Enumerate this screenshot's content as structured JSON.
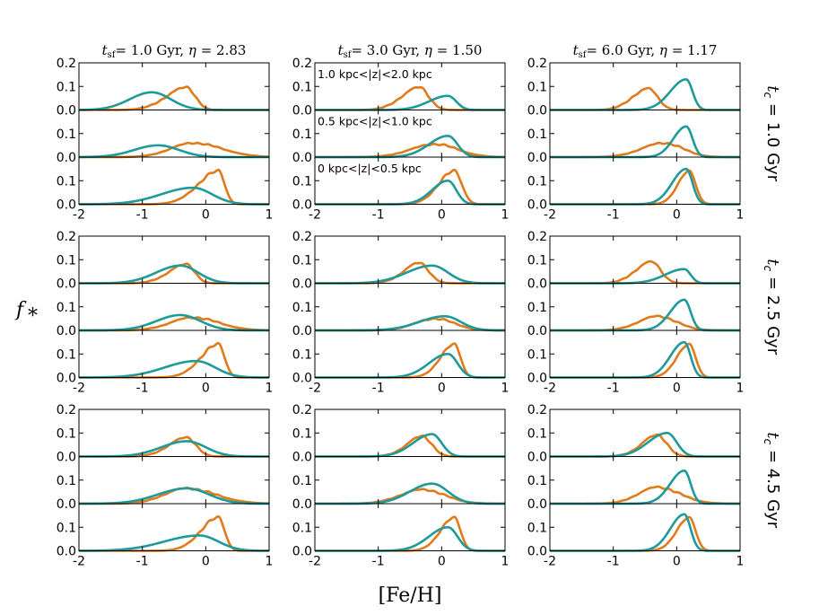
{
  "chart_data": {
    "type": "line",
    "xlabel": "[Fe/H]",
    "ylabel": "f_*",
    "xlim": [
      -2,
      1
    ],
    "ylim": [
      0,
      0.2
    ],
    "xticks": [
      -2,
      -1,
      0,
      1
    ],
    "yticks": [
      0.0,
      0.1,
      0.2
    ],
    "xtick_labels": [
      "-2",
      "-1",
      "0",
      "1"
    ],
    "ytick_labels": [
      "0.0",
      "0.1",
      "0.2"
    ],
    "series_colors": {
      "orange": "#e07b1a",
      "teal": "#1f9a9a"
    },
    "columns": [
      {
        "title": "t_sf = 1.0 Gyr, η = 2.83",
        "tsf_value": "1.0",
        "eta_value": "2.83"
      },
      {
        "title": "t_sf = 3.0 Gyr, η = 1.50",
        "tsf_value": "3.0",
        "eta_value": "1.50"
      },
      {
        "title": "t_sf = 6.0 Gyr, η = 1.17",
        "tsf_value": "6.0",
        "eta_value": "1.17"
      }
    ],
    "row_groups": [
      {
        "label": "t_c = 1.0 Gyr",
        "value": "= 1.0 Gyr"
      },
      {
        "label": "t_c = 2.5 Gyr",
        "value": "= 2.5 Gyr"
      },
      {
        "label": "t_c = 4.5 Gyr",
        "value": "= 4.5 Gyr"
      }
    ],
    "subrows": [
      {
        "label": "1.0 kpc<|z|<2.0 kpc"
      },
      {
        "label": "0.5 kpc<|z|<1.0 kpc"
      },
      {
        "label": "0 kpc<|z|<0.5 kpc"
      }
    ],
    "panels": [
      [
        [
          {
            "orange": {
              "mu": -0.3,
              "sl": 0.32,
              "sr": 0.14,
              "amp": 0.095,
              "jitter": 0.35
            },
            "teal": {
              "mu": -0.85,
              "sl": 0.35,
              "sr": 0.3,
              "amp": 0.075
            }
          },
          {
            "orange": {
              "mu": -0.2,
              "sl": 0.35,
              "sr": 0.45,
              "amp": 0.06,
              "jitter": 0.25
            },
            "teal": {
              "mu": -0.75,
              "sl": 0.38,
              "sr": 0.33,
              "amp": 0.05
            }
          },
          {
            "orange": {
              "mu": 0.2,
              "sl": 0.32,
              "sr": 0.1,
              "amp": 0.14,
              "jitter": 0.2
            },
            "teal": {
              "mu": -0.2,
              "sl": 0.5,
              "sr": 0.3,
              "amp": 0.07
            }
          }
        ],
        [
          {
            "orange": {
              "mu": -0.35,
              "sl": 0.28,
              "sr": 0.15,
              "amp": 0.095,
              "jitter": 0.35
            },
            "teal": {
              "mu": 0.1,
              "sl": 0.3,
              "sr": 0.13,
              "amp": 0.06
            }
          },
          {
            "orange": {
              "mu": -0.1,
              "sl": 0.38,
              "sr": 0.35,
              "amp": 0.055,
              "jitter": 0.3
            },
            "teal": {
              "mu": 0.1,
              "sl": 0.3,
              "sr": 0.15,
              "amp": 0.09
            }
          },
          {
            "orange": {
              "mu": 0.2,
              "sl": 0.25,
              "sr": 0.12,
              "amp": 0.14,
              "jitter": 0.2
            },
            "teal": {
              "mu": 0.1,
              "sl": 0.25,
              "sr": 0.13,
              "amp": 0.1
            }
          }
        ],
        [
          {
            "orange": {
              "mu": -0.45,
              "sl": 0.25,
              "sr": 0.15,
              "amp": 0.09,
              "jitter": 0.35
            },
            "teal": {
              "mu": 0.15,
              "sl": 0.25,
              "sr": 0.1,
              "amp": 0.13
            }
          },
          {
            "orange": {
              "mu": -0.2,
              "sl": 0.35,
              "sr": 0.3,
              "amp": 0.06,
              "jitter": 0.3
            },
            "teal": {
              "mu": 0.15,
              "sl": 0.2,
              "sr": 0.1,
              "amp": 0.13
            }
          },
          {
            "orange": {
              "mu": 0.2,
              "sl": 0.18,
              "sr": 0.1,
              "amp": 0.14,
              "jitter": 0.1
            },
            "teal": {
              "mu": 0.15,
              "sl": 0.22,
              "sr": 0.1,
              "amp": 0.15
            }
          }
        ]
      ],
      [
        [
          {
            "orange": {
              "mu": -0.3,
              "sl": 0.28,
              "sr": 0.13,
              "amp": 0.08,
              "jitter": 0.35
            },
            "teal": {
              "mu": -0.4,
              "sl": 0.38,
              "sr": 0.28,
              "amp": 0.075
            }
          },
          {
            "orange": {
              "mu": -0.2,
              "sl": 0.35,
              "sr": 0.4,
              "amp": 0.055,
              "jitter": 0.3
            },
            "teal": {
              "mu": -0.4,
              "sl": 0.38,
              "sr": 0.32,
              "amp": 0.065
            }
          },
          {
            "orange": {
              "mu": 0.2,
              "sl": 0.28,
              "sr": 0.1,
              "amp": 0.14,
              "jitter": 0.2
            },
            "teal": {
              "mu": -0.15,
              "sl": 0.5,
              "sr": 0.3,
              "amp": 0.07
            }
          }
        ],
        [
          {
            "orange": {
              "mu": -0.35,
              "sl": 0.25,
              "sr": 0.15,
              "amp": 0.085,
              "jitter": 0.35
            },
            "teal": {
              "mu": -0.15,
              "sl": 0.4,
              "sr": 0.25,
              "amp": 0.075
            }
          },
          {
            "orange": {
              "mu": -0.1,
              "sl": 0.32,
              "sr": 0.3,
              "amp": 0.05,
              "jitter": 0.3
            },
            "teal": {
              "mu": 0.05,
              "sl": 0.4,
              "sr": 0.25,
              "amp": 0.06
            }
          },
          {
            "orange": {
              "mu": 0.2,
              "sl": 0.22,
              "sr": 0.1,
              "amp": 0.14,
              "jitter": 0.15
            },
            "teal": {
              "mu": 0.1,
              "sl": 0.3,
              "sr": 0.15,
              "amp": 0.1
            }
          }
        ],
        [
          {
            "orange": {
              "mu": -0.4,
              "sl": 0.25,
              "sr": 0.15,
              "amp": 0.09,
              "jitter": 0.35
            },
            "teal": {
              "mu": 0.12,
              "sl": 0.3,
              "sr": 0.1,
              "amp": 0.06
            }
          },
          {
            "orange": {
              "mu": -0.3,
              "sl": 0.3,
              "sr": 0.3,
              "amp": 0.06,
              "jitter": 0.3
            },
            "teal": {
              "mu": 0.12,
              "sl": 0.22,
              "sr": 0.1,
              "amp": 0.13
            }
          },
          {
            "orange": {
              "mu": 0.2,
              "sl": 0.2,
              "sr": 0.1,
              "amp": 0.14,
              "jitter": 0.1
            },
            "teal": {
              "mu": 0.12,
              "sl": 0.22,
              "sr": 0.1,
              "amp": 0.15
            }
          }
        ]
      ],
      [
        [
          {
            "orange": {
              "mu": -0.3,
              "sl": 0.28,
              "sr": 0.15,
              "amp": 0.08,
              "jitter": 0.3
            },
            "teal": {
              "mu": -0.3,
              "sl": 0.4,
              "sr": 0.3,
              "amp": 0.065
            }
          },
          {
            "orange": {
              "mu": -0.3,
              "sl": 0.35,
              "sr": 0.45,
              "amp": 0.065,
              "jitter": 0.3
            },
            "teal": {
              "mu": -0.3,
              "sl": 0.45,
              "sr": 0.35,
              "amp": 0.065
            }
          },
          {
            "orange": {
              "mu": 0.2,
              "sl": 0.28,
              "sr": 0.1,
              "amp": 0.14,
              "jitter": 0.2
            },
            "teal": {
              "mu": -0.1,
              "sl": 0.55,
              "sr": 0.3,
              "amp": 0.065
            }
          }
        ],
        [
          {
            "orange": {
              "mu": -0.3,
              "sl": 0.25,
              "sr": 0.15,
              "amp": 0.085,
              "jitter": 0.35
            },
            "teal": {
              "mu": -0.15,
              "sl": 0.3,
              "sr": 0.15,
              "amp": 0.095
            }
          },
          {
            "orange": {
              "mu": -0.3,
              "sl": 0.35,
              "sr": 0.35,
              "amp": 0.06,
              "jitter": 0.3
            },
            "teal": {
              "mu": -0.15,
              "sl": 0.35,
              "sr": 0.25,
              "amp": 0.085
            }
          },
          {
            "orange": {
              "mu": 0.2,
              "sl": 0.22,
              "sr": 0.1,
              "amp": 0.14,
              "jitter": 0.15
            },
            "teal": {
              "mu": 0.1,
              "sl": 0.3,
              "sr": 0.15,
              "amp": 0.1
            }
          }
        ],
        [
          {
            "orange": {
              "mu": -0.3,
              "sl": 0.25,
              "sr": 0.15,
              "amp": 0.09,
              "jitter": 0.35
            },
            "teal": {
              "mu": -0.15,
              "sl": 0.3,
              "sr": 0.15,
              "amp": 0.1
            }
          },
          {
            "orange": {
              "mu": -0.3,
              "sl": 0.3,
              "sr": 0.35,
              "amp": 0.07,
              "jitter": 0.3
            },
            "teal": {
              "mu": 0.12,
              "sl": 0.22,
              "sr": 0.1,
              "amp": 0.14
            }
          },
          {
            "orange": {
              "mu": 0.2,
              "sl": 0.2,
              "sr": 0.1,
              "amp": 0.14,
              "jitter": 0.1
            },
            "teal": {
              "mu": 0.12,
              "sl": 0.22,
              "sr": 0.1,
              "amp": 0.155
            }
          }
        ]
      ]
    ]
  }
}
